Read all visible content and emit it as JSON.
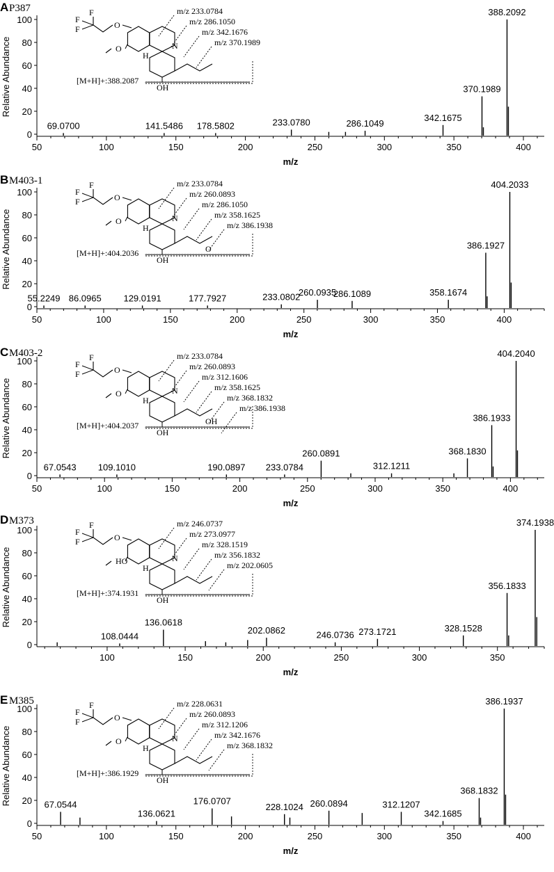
{
  "chart_data": [
    {
      "type": "bar",
      "panel_letter": "A",
      "compound": "P387",
      "xlabel": "m/z",
      "ylabel": "Relative Abundance",
      "xlim": [
        50,
        415
      ],
      "ylim": [
        0,
        100
      ],
      "x_ticks": [
        50,
        100,
        150,
        200,
        250,
        300,
        350,
        400
      ],
      "y_ticks": [
        0,
        20,
        40,
        60,
        80,
        100
      ],
      "peaks": [
        {
          "mz": 69.07,
          "intensity": 1,
          "label": "69.0700"
        },
        {
          "mz": 141.5486,
          "intensity": 1,
          "label": "141.5486"
        },
        {
          "mz": 178.5802,
          "intensity": 1,
          "label": "178.5802"
        },
        {
          "mz": 233.078,
          "intensity": 4,
          "label": "233.0780"
        },
        {
          "mz": 260.0,
          "intensity": 2
        },
        {
          "mz": 272.0,
          "intensity": 2
        },
        {
          "mz": 286.1049,
          "intensity": 3,
          "label": "286.1049"
        },
        {
          "mz": 342.1675,
          "intensity": 8,
          "label": "342.1675"
        },
        {
          "mz": 370.1989,
          "intensity": 33,
          "label": "370.1989"
        },
        {
          "mz": 371.2,
          "intensity": 6
        },
        {
          "mz": 388.2092,
          "intensity": 100,
          "label": "388.2092"
        },
        {
          "mz": 389.2,
          "intensity": 24
        }
      ],
      "structure": {
        "fragments": [
          "m/z 233.0784",
          "m/z 286.1050",
          "m/z 342.1676",
          "m/z 370.1989"
        ],
        "precursor": "[M+H]+:388.2087",
        "atom_labels": [
          "F",
          "F",
          "F",
          "O",
          "O",
          "N",
          "H",
          "OH"
        ]
      }
    },
    {
      "type": "bar",
      "panel_letter": "B",
      "compound": "M403-1",
      "xlabel": "m/z",
      "ylabel": "Relative Abundance",
      "xlim": [
        50,
        430
      ],
      "ylim": [
        0,
        100
      ],
      "x_ticks": [
        50,
        100,
        150,
        200,
        250,
        300,
        350,
        400
      ],
      "y_ticks": [
        0,
        20,
        40,
        60,
        80,
        100
      ],
      "peaks": [
        {
          "mz": 55.2249,
          "intensity": 1,
          "label": "55.2249"
        },
        {
          "mz": 86.0965,
          "intensity": 1,
          "label": "86.0965"
        },
        {
          "mz": 129.0191,
          "intensity": 1,
          "label": "129.0191"
        },
        {
          "mz": 177.7927,
          "intensity": 1,
          "label": "177.7927"
        },
        {
          "mz": 233.0802,
          "intensity": 2,
          "label": "233.0802"
        },
        {
          "mz": 260.0935,
          "intensity": 6,
          "label": "260.0935"
        },
        {
          "mz": 286.1089,
          "intensity": 5,
          "label": "286.1089"
        },
        {
          "mz": 358.1674,
          "intensity": 6,
          "label": "358.1674"
        },
        {
          "mz": 386.1927,
          "intensity": 47,
          "label": "386.1927"
        },
        {
          "mz": 387.2,
          "intensity": 9
        },
        {
          "mz": 404.2033,
          "intensity": 100,
          "label": "404.2033"
        },
        {
          "mz": 405.2,
          "intensity": 21
        }
      ],
      "structure": {
        "fragments": [
          "m/z 233.0784",
          "m/z 260.0893",
          "m/z 286.1050",
          "m/z 358.1625",
          "m/z 386.1938"
        ],
        "precursor": "[M+H]+:404.2036",
        "atom_labels": [
          "F",
          "F",
          "F",
          "O",
          "O",
          "N",
          "H",
          "O",
          "OH"
        ]
      }
    },
    {
      "type": "bar",
      "panel_letter": "C",
      "compound": "M403-2",
      "xlabel": "m/z",
      "ylabel": "Relative Abundance",
      "xlim": [
        50,
        425
      ],
      "ylim": [
        0,
        100
      ],
      "x_ticks": [
        50,
        100,
        150,
        200,
        250,
        300,
        350,
        400
      ],
      "y_ticks": [
        0,
        20,
        40,
        60,
        80,
        100
      ],
      "peaks": [
        {
          "mz": 67.0543,
          "intensity": 1,
          "label": "67.0543"
        },
        {
          "mz": 109.101,
          "intensity": 1,
          "label": "109.1010"
        },
        {
          "mz": 190.0897,
          "intensity": 1,
          "label": "190.0897"
        },
        {
          "mz": 233.0784,
          "intensity": 1,
          "label": "233.0784"
        },
        {
          "mz": 260.0891,
          "intensity": 13,
          "label": "260.0891"
        },
        {
          "mz": 282.0,
          "intensity": 2
        },
        {
          "mz": 312.1211,
          "intensity": 2,
          "label": "312.1211"
        },
        {
          "mz": 358.2,
          "intensity": 2
        },
        {
          "mz": 368.183,
          "intensity": 15,
          "label": "368.1830"
        },
        {
          "mz": 386.1933,
          "intensity": 44,
          "label": "386.1933"
        },
        {
          "mz": 387.2,
          "intensity": 8
        },
        {
          "mz": 404.204,
          "intensity": 100,
          "label": "404.2040"
        },
        {
          "mz": 405.2,
          "intensity": 22
        }
      ],
      "structure": {
        "fragments": [
          "m/z 233.0784",
          "m/z 260.0893",
          "m/z 312.1606",
          "m/z 358.1625",
          "m/z 368.1832",
          "m/z 386.1938"
        ],
        "precursor": "[M+H]+:404.2037",
        "atom_labels": [
          "F",
          "F",
          "F",
          "O",
          "O",
          "N",
          "H",
          "OH",
          "OH"
        ]
      }
    },
    {
      "type": "bar",
      "panel_letter": "D",
      "compound": "M373",
      "xlabel": "m/z",
      "ylabel": "Relative Abundance",
      "xlim": [
        55,
        380
      ],
      "ylim": [
        0,
        100
      ],
      "x_ticks": [
        100,
        150,
        200,
        250,
        300,
        350
      ],
      "y_ticks": [
        0,
        20,
        40,
        60,
        80,
        100
      ],
      "peaks": [
        {
          "mz": 68.0,
          "intensity": 2
        },
        {
          "mz": 108.0444,
          "intensity": 1,
          "label": "108.0444"
        },
        {
          "mz": 136.0618,
          "intensity": 13,
          "label": "136.0618"
        },
        {
          "mz": 163.0,
          "intensity": 3
        },
        {
          "mz": 176.0,
          "intensity": 2
        },
        {
          "mz": 190.0,
          "intensity": 4
        },
        {
          "mz": 202.0862,
          "intensity": 6,
          "label": "202.0862"
        },
        {
          "mz": 246.0736,
          "intensity": 2,
          "label": "246.0736"
        },
        {
          "mz": 273.1721,
          "intensity": 5,
          "label": "273.1721"
        },
        {
          "mz": 328.1528,
          "intensity": 8,
          "label": "328.1528"
        },
        {
          "mz": 356.1833,
          "intensity": 45,
          "label": "356.1833"
        },
        {
          "mz": 357.2,
          "intensity": 8
        },
        {
          "mz": 374.1938,
          "intensity": 100,
          "label": "374.1938"
        },
        {
          "mz": 375.2,
          "intensity": 24
        }
      ],
      "structure": {
        "fragments": [
          "m/z 246.0737",
          "m/z 273.0977",
          "m/z 328.1519",
          "m/z 356.1832",
          "m/z 202.0605"
        ],
        "precursor": "[M+H]+:374.1931",
        "atom_labels": [
          "F",
          "F",
          "F",
          "O",
          "HO",
          "N",
          "H",
          "OH"
        ]
      }
    },
    {
      "type": "bar",
      "panel_letter": "E",
      "compound": "M385",
      "xlabel": "m/z",
      "ylabel": "Relative Abundance",
      "xlim": [
        50,
        415
      ],
      "ylim": [
        0,
        100
      ],
      "x_ticks": [
        50,
        100,
        150,
        200,
        250,
        300,
        350,
        400
      ],
      "y_ticks": [
        0,
        20,
        40,
        60,
        80,
        100
      ],
      "peaks": [
        {
          "mz": 67.0544,
          "intensity": 10,
          "label": "67.0544"
        },
        {
          "mz": 81.0,
          "intensity": 5
        },
        {
          "mz": 136.0621,
          "intensity": 2,
          "label": "136.0621"
        },
        {
          "mz": 176.0707,
          "intensity": 13,
          "label": "176.0707"
        },
        {
          "mz": 190.0,
          "intensity": 6
        },
        {
          "mz": 228.1024,
          "intensity": 8,
          "label": "228.1024"
        },
        {
          "mz": 232.0,
          "intensity": 5
        },
        {
          "mz": 260.0894,
          "intensity": 11,
          "label": "260.0894"
        },
        {
          "mz": 284.0,
          "intensity": 9
        },
        {
          "mz": 312.1207,
          "intensity": 10,
          "label": "312.1207"
        },
        {
          "mz": 342.1685,
          "intensity": 2,
          "label": "342.1685"
        },
        {
          "mz": 368.1832,
          "intensity": 22,
          "label": "368.1832"
        },
        {
          "mz": 369.2,
          "intensity": 5
        },
        {
          "mz": 386.1937,
          "intensity": 100,
          "label": "386.1937"
        },
        {
          "mz": 387.2,
          "intensity": 25
        }
      ],
      "structure": {
        "fragments": [
          "m/z 228.0631",
          "m/z 260.0893",
          "m/z 312.1206",
          "m/z 342.1676",
          "m/z 368.1832"
        ],
        "precursor": "[M+H]+:386.1929",
        "atom_labels": [
          "F",
          "F",
          "F",
          "O",
          "O",
          "N",
          "H",
          "OH"
        ]
      }
    }
  ]
}
